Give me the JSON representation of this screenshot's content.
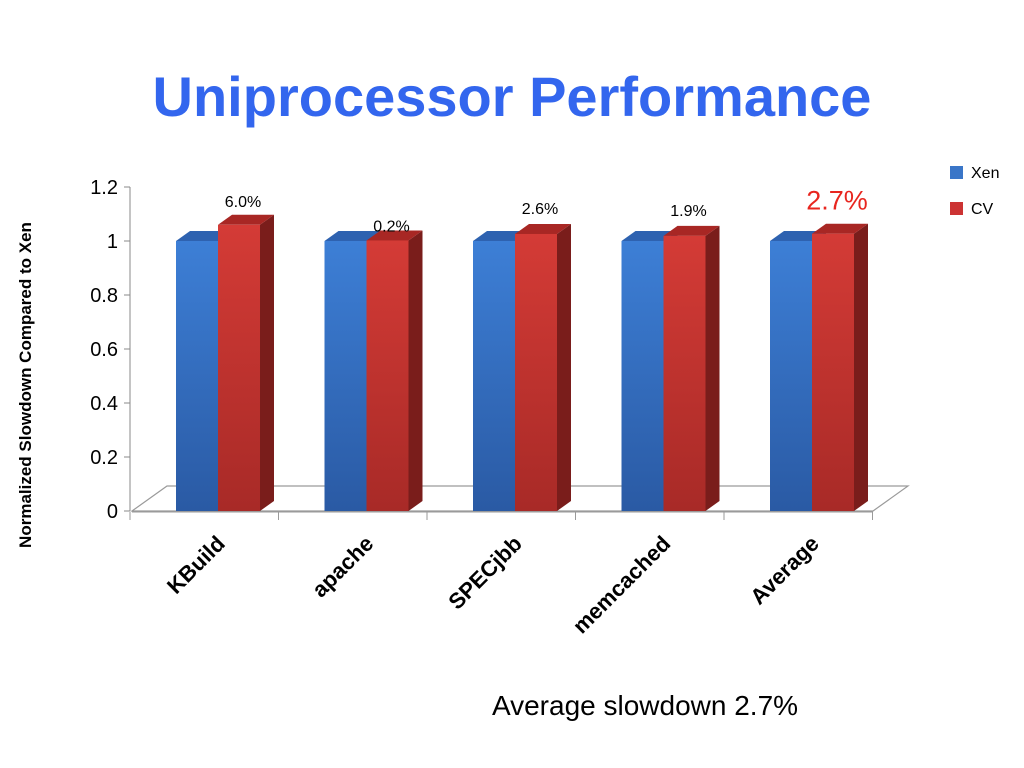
{
  "slide": {
    "title": "Uniprocessor Performance",
    "footnote": "Average slowdown 2.7%"
  },
  "colors": {
    "xen": "#3a76c8",
    "cv": "#cc3333",
    "title": "#3366ee",
    "highlight": "#e8261f"
  },
  "chart_data": {
    "type": "bar",
    "ylabel": "Normalized Slowdown Compared to Xen",
    "ylim": [
      0,
      1.2
    ],
    "yticks": [
      "0",
      "0.2",
      "0.4",
      "0.6",
      "0.8",
      "1",
      "1.2"
    ],
    "categories": [
      "KBuild",
      "apache",
      "SPECjbb",
      "memcached",
      "Average"
    ],
    "series": [
      {
        "name": "Xen",
        "values": [
          1,
          1,
          1,
          1,
          1
        ]
      },
      {
        "name": "CV",
        "values": [
          1.06,
          1.002,
          1.026,
          1.019,
          1.027
        ]
      }
    ],
    "data_labels": [
      "6.0%",
      "0.2%",
      "2.6%",
      "1.9%",
      "2.7%"
    ],
    "legend": "right",
    "grid": false
  }
}
